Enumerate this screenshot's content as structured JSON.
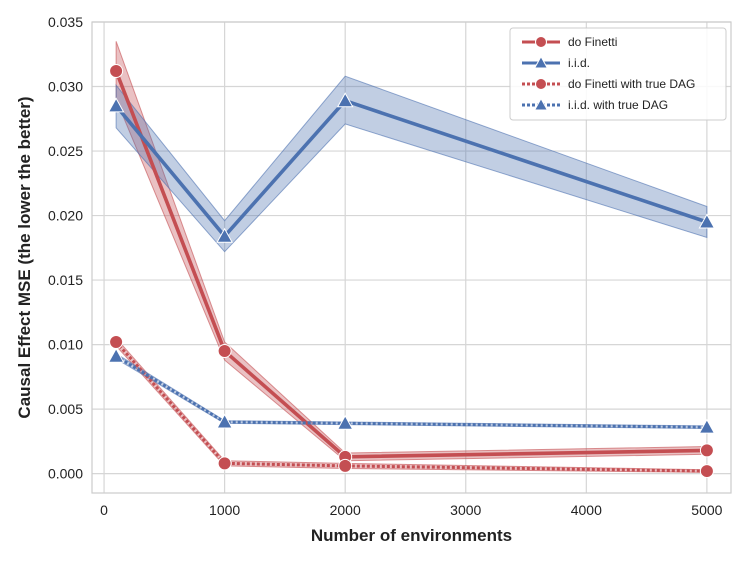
{
  "chart_data": {
    "type": "line",
    "xlabel": "Number of environments",
    "ylabel": "Causal Effect MSE (the lower the better)",
    "xlim": [
      -100,
      5200
    ],
    "ylim": [
      -0.0015,
      0.035
    ],
    "xticks": [
      0,
      1000,
      2000,
      3000,
      4000,
      5000
    ],
    "xtick_labels": [
      "0",
      "1000",
      "2000",
      "3000",
      "4000",
      "5000"
    ],
    "yticks": [
      0.0,
      0.005,
      0.01,
      0.015,
      0.02,
      0.025,
      0.03,
      0.035
    ],
    "ytick_labels": [
      "0.000",
      "0.005",
      "0.010",
      "0.015",
      "0.020",
      "0.025",
      "0.030",
      "0.035"
    ],
    "grid": true,
    "legend_position": "top-right",
    "colors": {
      "red": "#c44e52",
      "blue": "#4c72b0"
    },
    "series": [
      {
        "name": "do Finetti",
        "color": "red",
        "style": "solid",
        "marker": "circle",
        "x": [
          100,
          1000,
          2000,
          5000
        ],
        "y": [
          0.0312,
          0.0095,
          0.0013,
          0.0018
        ],
        "lower": [
          0.029,
          0.0088,
          0.001,
          0.0015
        ],
        "upper": [
          0.0335,
          0.0102,
          0.0016,
          0.0021
        ]
      },
      {
        "name": "i.i.d.",
        "color": "blue",
        "style": "solid",
        "marker": "triangle",
        "x": [
          100,
          1000,
          2000,
          5000
        ],
        "y": [
          0.0285,
          0.0184,
          0.0289,
          0.0195
        ],
        "lower": [
          0.0268,
          0.0172,
          0.0271,
          0.0183
        ],
        "upper": [
          0.0301,
          0.0196,
          0.0308,
          0.0207
        ]
      },
      {
        "name": "do Finetti with true DAG",
        "color": "red",
        "style": "dotted",
        "marker": "circle",
        "x": [
          100,
          1000,
          2000,
          5000
        ],
        "y": [
          0.0102,
          0.0008,
          0.0006,
          0.0002
        ],
        "lower": [
          0.0099,
          0.0006,
          0.0004,
          0.0001
        ],
        "upper": [
          0.0105,
          0.001,
          0.0008,
          0.0003
        ]
      },
      {
        "name": "i.i.d. with true DAG",
        "color": "blue",
        "style": "dotted",
        "marker": "triangle",
        "x": [
          100,
          1000,
          2000,
          5000
        ],
        "y": [
          0.0091,
          0.004,
          0.0039,
          0.0036
        ],
        "lower": [
          0.0089,
          0.0039,
          0.0038,
          0.0035
        ],
        "upper": [
          0.0093,
          0.0041,
          0.004,
          0.0037
        ]
      }
    ]
  }
}
